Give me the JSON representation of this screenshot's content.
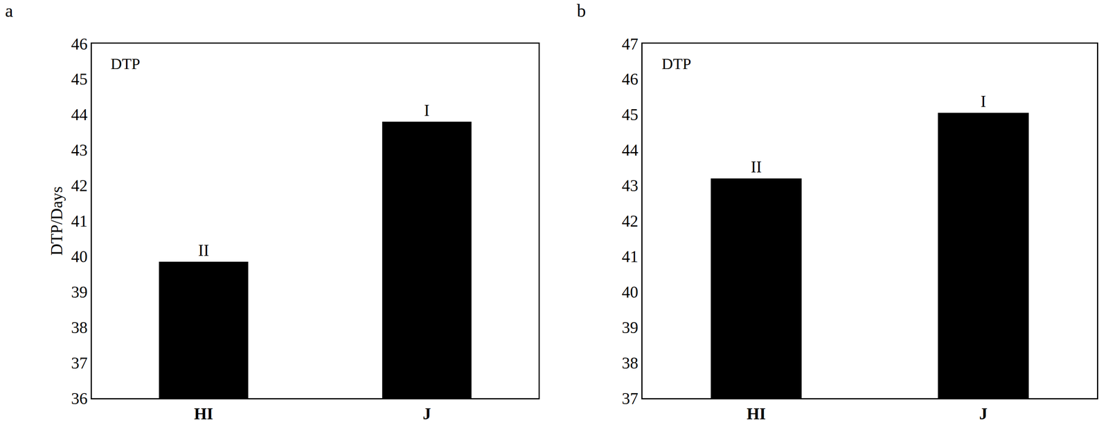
{
  "chart_data": [
    {
      "type": "bar",
      "title": "a",
      "subtitle": "DTP",
      "y_label": "DTP/Days",
      "categories": [
        "HI",
        "J"
      ],
      "values": [
        39.85,
        43.8
      ],
      "color": "#000000",
      "ylim": [
        36,
        46
      ],
      "yticks": [
        36,
        37,
        38,
        39,
        40,
        41,
        42,
        43,
        44,
        45,
        46
      ],
      "grid": false,
      "annotations": [
        {
          "category": "HI",
          "text": "II"
        },
        {
          "category": "J",
          "text": "I"
        }
      ]
    },
    {
      "type": "bar",
      "title": "b",
      "subtitle": "DTP",
      "categories": [
        "HI",
        "J"
      ],
      "values": [
        43.2,
        45.05
      ],
      "color": "#000000",
      "ylim": [
        37,
        47
      ],
      "yticks": [
        37,
        38,
        39,
        40,
        41,
        42,
        43,
        44,
        45,
        46,
        47
      ],
      "grid": false,
      "annotations": [
        {
          "category": "HI",
          "text": "II"
        },
        {
          "category": "J",
          "text": "I"
        }
      ]
    }
  ]
}
